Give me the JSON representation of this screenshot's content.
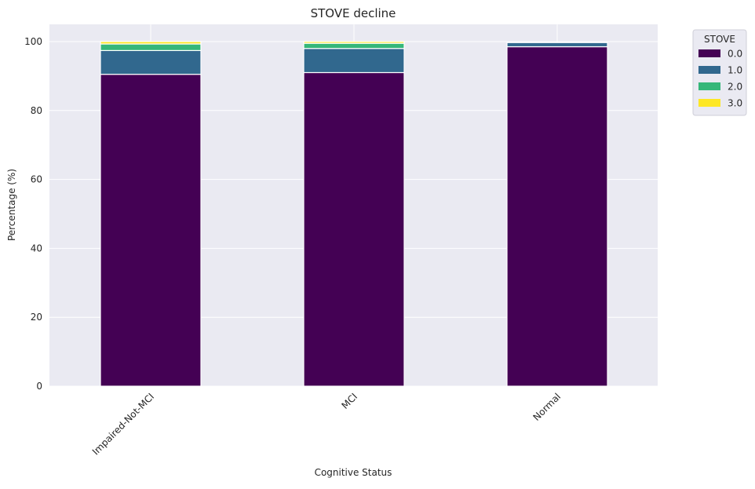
{
  "chart_data": {
    "type": "bar",
    "stacked": true,
    "title": "STOVE decline",
    "xlabel": "Cognitive Status",
    "ylabel": "Percentage (%)",
    "categories": [
      "Impaired-Not-MCI",
      "MCI",
      "Normal"
    ],
    "ylim": [
      0,
      105
    ],
    "yticks": [
      0,
      20,
      40,
      60,
      80,
      100
    ],
    "grid": true,
    "legend": {
      "title": "STOVE",
      "placement": "outside top-right"
    },
    "series": [
      {
        "name": "0.0",
        "color": "#440154",
        "values": [
          90.5,
          91.0,
          98.5
        ]
      },
      {
        "name": "1.0",
        "color": "#31688e",
        "values": [
          6.9,
          7.0,
          1.2
        ]
      },
      {
        "name": "2.0",
        "color": "#35b779",
        "values": [
          1.9,
          1.5,
          0.0
        ]
      },
      {
        "name": "3.0",
        "color": "#fde725",
        "values": [
          0.7,
          0.5,
          0.0
        ]
      }
    ]
  }
}
